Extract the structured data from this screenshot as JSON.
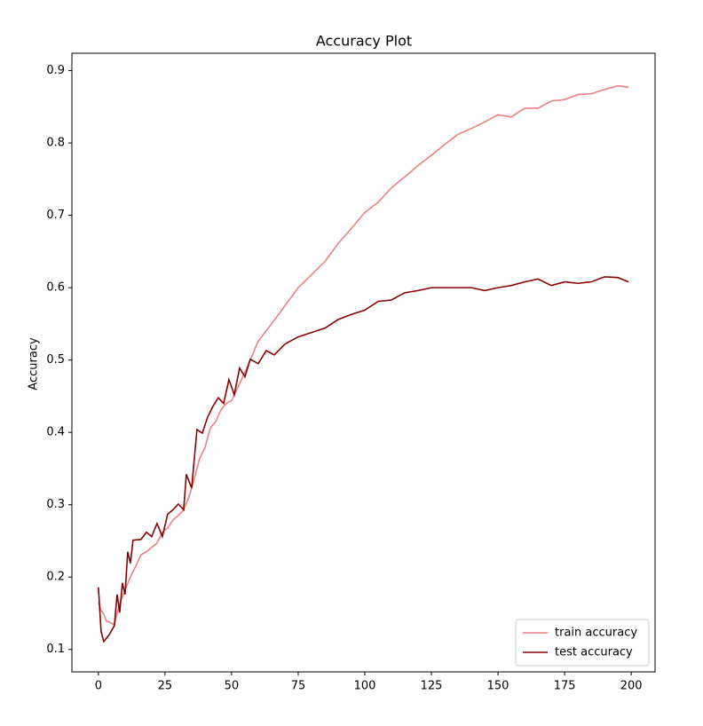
{
  "chart_data": {
    "type": "line",
    "title": "Accuracy Plot",
    "y_label": "Accuracy",
    "xlim": [
      -9.95,
      208.95
    ],
    "ylim": [
      0.069,
      0.924
    ],
    "xticks": [
      0,
      25,
      50,
      75,
      100,
      125,
      150,
      175,
      200
    ],
    "yticks": [
      0.1,
      0.2,
      0.3,
      0.4,
      0.5,
      0.6,
      0.7,
      0.8,
      0.9
    ],
    "legend": "lower right",
    "grid": false,
    "series": [
      {
        "name": "train accuracy",
        "color": "#f08080",
        "x": [
          0,
          1,
          2,
          3,
          4,
          6,
          8,
          10,
          12,
          14,
          16,
          18,
          20,
          22,
          24,
          26,
          28,
          30,
          32,
          34,
          36,
          38,
          40,
          42,
          44,
          46,
          48,
          50,
          55,
          60,
          65,
          70,
          75,
          80,
          85,
          90,
          95,
          100,
          105,
          110,
          115,
          120,
          125,
          130,
          135,
          140,
          145,
          150,
          155,
          160,
          165,
          170,
          175,
          180,
          185,
          190,
          195,
          199
        ],
        "values": [
          0.166,
          0.154,
          0.149,
          0.139,
          0.138,
          0.134,
          0.164,
          0.182,
          0.2,
          0.215,
          0.231,
          0.235,
          0.241,
          0.247,
          0.262,
          0.268,
          0.279,
          0.285,
          0.293,
          0.311,
          0.336,
          0.364,
          0.379,
          0.406,
          0.415,
          0.431,
          0.44,
          0.444,
          0.483,
          0.526,
          0.55,
          0.575,
          0.6,
          0.618,
          0.636,
          0.661,
          0.682,
          0.704,
          0.718,
          0.738,
          0.753,
          0.769,
          0.783,
          0.798,
          0.812,
          0.82,
          0.829,
          0.839,
          0.836,
          0.848,
          0.848,
          0.858,
          0.86,
          0.867,
          0.868,
          0.874,
          0.879,
          0.877
        ]
      },
      {
        "name": "test accuracy",
        "color": "#8b0000",
        "x": [
          0,
          1,
          2,
          4,
          6,
          7,
          8,
          9,
          10,
          11,
          12,
          13,
          16,
          18,
          20,
          22,
          24,
          26,
          28,
          30,
          32,
          33,
          35,
          37,
          39,
          41,
          43,
          45,
          47,
          49,
          51,
          53,
          55,
          57,
          60,
          63,
          66,
          70,
          75,
          80,
          85,
          90,
          95,
          100,
          105,
          110,
          115,
          120,
          125,
          130,
          135,
          140,
          145,
          150,
          155,
          160,
          165,
          170,
          175,
          180,
          185,
          190,
          195,
          199
        ],
        "values": [
          0.186,
          0.125,
          0.111,
          0.12,
          0.133,
          0.176,
          0.151,
          0.192,
          0.176,
          0.235,
          0.219,
          0.251,
          0.252,
          0.262,
          0.256,
          0.274,
          0.256,
          0.287,
          0.293,
          0.301,
          0.293,
          0.342,
          0.323,
          0.404,
          0.399,
          0.421,
          0.436,
          0.448,
          0.44,
          0.473,
          0.452,
          0.489,
          0.477,
          0.501,
          0.495,
          0.513,
          0.507,
          0.522,
          0.532,
          0.538,
          0.544,
          0.556,
          0.563,
          0.569,
          0.581,
          0.583,
          0.593,
          0.596,
          0.6,
          0.6,
          0.6,
          0.6,
          0.596,
          0.6,
          0.603,
          0.608,
          0.612,
          0.603,
          0.608,
          0.606,
          0.608,
          0.615,
          0.614,
          0.608
        ]
      }
    ]
  }
}
